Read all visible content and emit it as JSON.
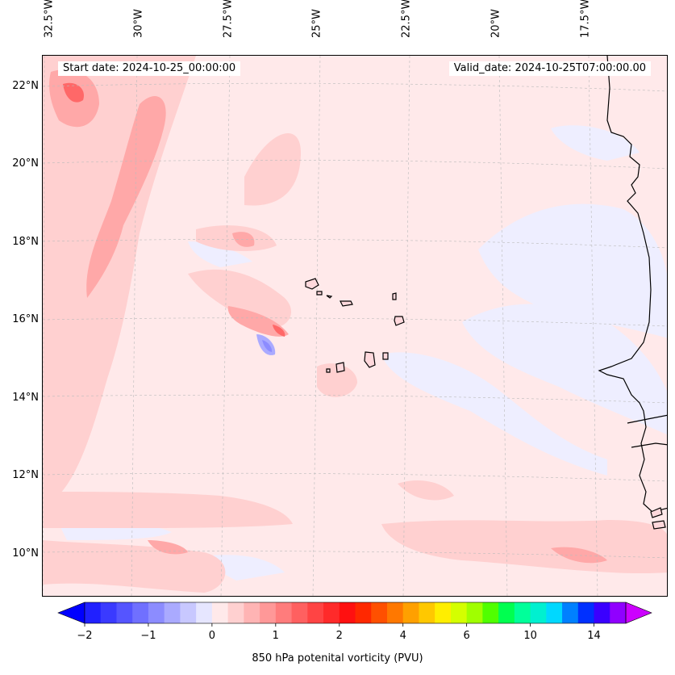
{
  "header": {
    "start_date": "Start date: 2024-10-25_00:00:00",
    "valid_date": "Valid_date: 2024-10-25T07:00:00.00"
  },
  "map": {
    "lon_labels": [
      {
        "lon": -32.5,
        "text": "32.5°W"
      },
      {
        "lon": -30,
        "text": "30°W"
      },
      {
        "lon": -27.5,
        "text": "27.5°W"
      },
      {
        "lon": -25,
        "text": "25°W"
      },
      {
        "lon": -22.5,
        "text": "22.5°W"
      },
      {
        "lon": -20,
        "text": "20°W"
      },
      {
        "lon": -17.5,
        "text": "17.5°W"
      }
    ],
    "lat_labels": [
      {
        "lat": 22,
        "text": "22°N"
      },
      {
        "lat": 20,
        "text": "20°N"
      },
      {
        "lat": 18,
        "text": "18°N"
      },
      {
        "lat": 16,
        "text": "16°N"
      },
      {
        "lat": 14,
        "text": "14°N"
      },
      {
        "lat": 12,
        "text": "12°N"
      },
      {
        "lat": 10,
        "text": "10°N"
      }
    ],
    "extent": {
      "lon_min": -32.7,
      "lon_max": -15.2,
      "lat_min": 8.9,
      "lat_max": 22.8
    },
    "background_color": "#ffe9ea",
    "grid": true
  },
  "colorbar": {
    "label": "850 hPa potenital vorticity (PVU)",
    "tick_labels": [
      "−2",
      "−1",
      "0",
      "1",
      "2",
      "4",
      "6",
      "10",
      "14"
    ],
    "levels": [
      -2,
      -1.75,
      -1.5,
      -1.25,
      -1,
      -0.75,
      -0.5,
      -0.25,
      0,
      0.25,
      0.5,
      0.75,
      1,
      1.25,
      1.5,
      1.75,
      2,
      2.5,
      3,
      3.5,
      4,
      4.5,
      5,
      5.5,
      6,
      7,
      8,
      9,
      10,
      11,
      12,
      13,
      14,
      15
    ],
    "colors": [
      "#2020ff",
      "#3a3aff",
      "#5555ff",
      "#7070ff",
      "#8c8cff",
      "#aaaaff",
      "#c8c8ff",
      "#e6e6ff",
      "#ffe9ea",
      "#ffd0d0",
      "#ffb4b4",
      "#ff9898",
      "#ff7c7c",
      "#ff6060",
      "#ff4444",
      "#ff2a2a",
      "#ff1010",
      "#ff2800",
      "#ff5000",
      "#ff7800",
      "#ffa000",
      "#ffc800",
      "#ffee00",
      "#d4ff00",
      "#a0ff00",
      "#50ff00",
      "#00ff50",
      "#00ff9a",
      "#00f0d0",
      "#00d8ff",
      "#0080ff",
      "#0030ff",
      "#3a00ff",
      "#9000ff"
    ],
    "under_color": "#0000ff",
    "over_color": "#cc00ff"
  }
}
